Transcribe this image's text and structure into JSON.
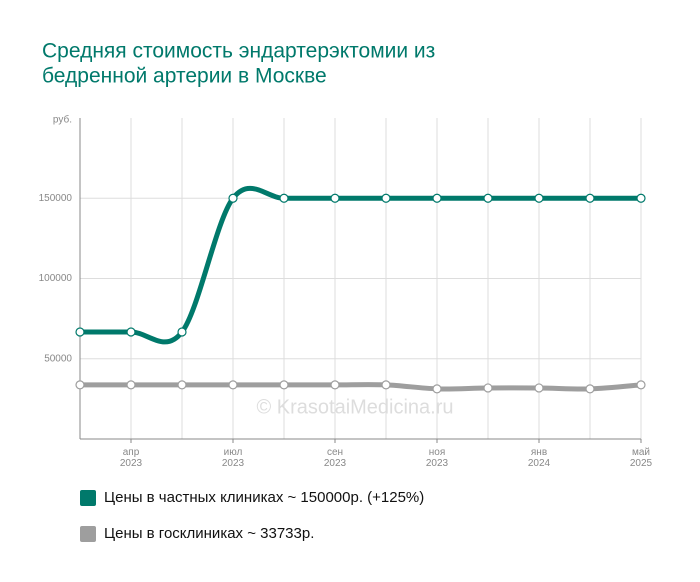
{
  "chart_data": {
    "type": "line",
    "title": [
      "Средняя стоимость эндартерэктомии из",
      "бедренной артерии в Москве"
    ],
    "ylabel": "руб.",
    "watermark": "© KrasotaiMedicina.ru",
    "categories": [
      null,
      "апр\n2023",
      null,
      "июл\n2023",
      null,
      "сен\n2023",
      null,
      "ноя\n2023",
      null,
      "янв\n2024",
      null,
      "май\n2025"
    ],
    "series": [
      {
        "name": "Цены в частных клиниках ~ 150000р. (+125%)",
        "color": "#00796b",
        "values": [
          66667,
          66667,
          66667,
          150000,
          150000,
          150000,
          150000,
          150000,
          150000,
          150000,
          150000,
          150000
        ]
      },
      {
        "name": "Цены в госклиниках ~ 33733р.",
        "color": "#9e9e9e",
        "values": [
          33733,
          33733,
          33733,
          33733,
          33733,
          33733,
          33733,
          31250,
          31800,
          31800,
          31250,
          33733
        ]
      }
    ],
    "ylim": [
      0,
      200000
    ],
    "yticks": [
      50000,
      100000,
      150000
    ],
    "grid": true
  }
}
